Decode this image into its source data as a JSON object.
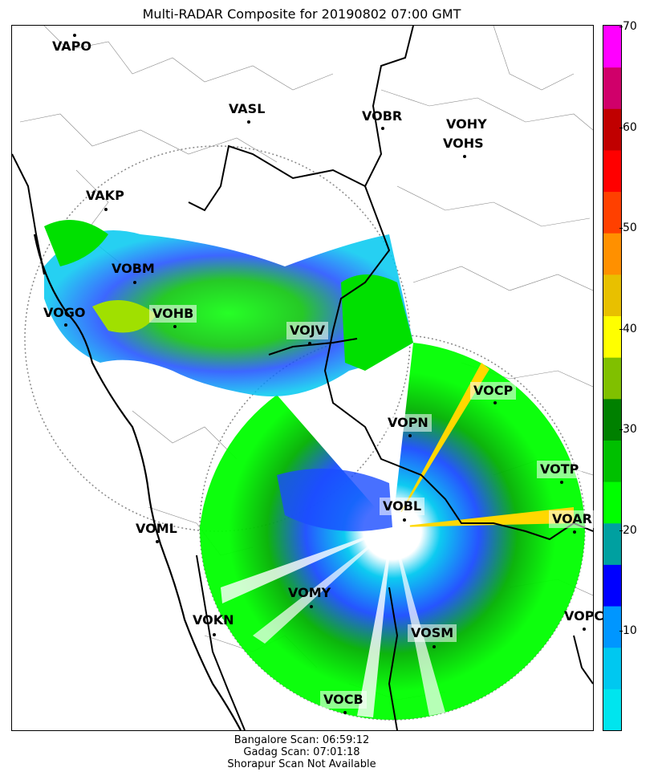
{
  "title": "Multi-RADAR Composite for 20190802 07:00 GMT",
  "footer": {
    "line1": "Bangalore Scan: 06:59:12",
    "line2": "Gadag Scan: 07:01:18",
    "line3": "Shorapur Scan Not Available"
  },
  "colorbar": {
    "ticks": [
      "10",
      "20",
      "30",
      "40",
      "50",
      "60",
      "70"
    ],
    "min": 0,
    "max": 70,
    "colors": [
      "#00e5ee",
      "#00c8f0",
      "#0096ff",
      "#0000ff",
      "#00a0a0",
      "#00ff00",
      "#00c000",
      "#008000",
      "#80c000",
      "#ffff00",
      "#e8c000",
      "#ff9000",
      "#ff4000",
      "#ff0000",
      "#c00000",
      "#d0006a",
      "#ff00ff"
    ]
  },
  "stations": [
    {
      "id": "VAPO",
      "label": "VAPO",
      "boxed": false
    },
    {
      "id": "VASL",
      "label": "VASL",
      "boxed": false
    },
    {
      "id": "VOBR",
      "label": "VOBR",
      "boxed": false
    },
    {
      "id": "VOHY",
      "label": "VOHY",
      "boxed": false
    },
    {
      "id": "VOHS",
      "label": "VOHS",
      "boxed": false
    },
    {
      "id": "VAKP",
      "label": "VAKP",
      "boxed": false
    },
    {
      "id": "VOBM",
      "label": "VOBM",
      "boxed": false
    },
    {
      "id": "VOGO",
      "label": "VOGO",
      "boxed": false
    },
    {
      "id": "VOHB",
      "label": "VOHB",
      "boxed": true
    },
    {
      "id": "VOJV",
      "label": "VOJV",
      "boxed": true
    },
    {
      "id": "VOCP",
      "label": "VOCP",
      "boxed": true
    },
    {
      "id": "VOPN",
      "label": "VOPN",
      "boxed": true
    },
    {
      "id": "VOTP",
      "label": "VOTP",
      "boxed": true
    },
    {
      "id": "VOBL",
      "label": "VOBL",
      "boxed": true
    },
    {
      "id": "VOAR",
      "label": "VOAR",
      "boxed": true
    },
    {
      "id": "VOML",
      "label": "VOML",
      "boxed": false
    },
    {
      "id": "VOMY",
      "label": "VOMY",
      "boxed": false
    },
    {
      "id": "VOKN",
      "label": "VOKN",
      "boxed": false
    },
    {
      "id": "VOPC",
      "label": "VOPC",
      "boxed": false
    },
    {
      "id": "VOSM",
      "label": "VOSM",
      "boxed": true
    },
    {
      "id": "VOCB",
      "label": "VOCB",
      "boxed": true
    }
  ]
}
